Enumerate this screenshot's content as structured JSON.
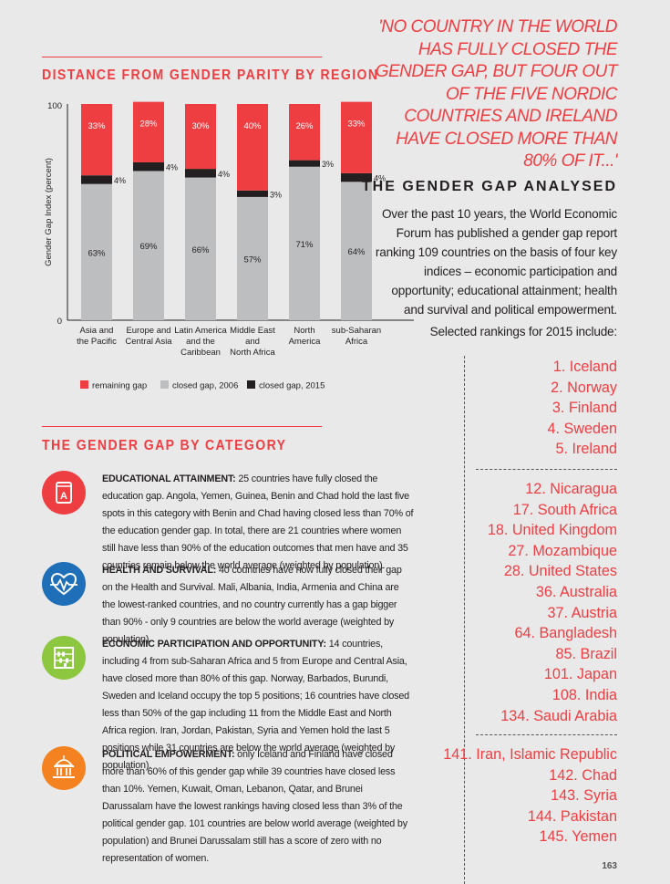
{
  "quote": "'NO COUNTRY IN THE WORLD HAS FULLY CLOSED THE GENDER GAP, BUT FOUR OUT OF THE FIVE NORDIC COUNTRIES AND IRELAND HAVE CLOSED MORE THAN 80% OF IT...'",
  "chart_heading": "DISTANCE FROM GENDER PARITY BY REGION",
  "category_heading": "THE GENDER GAP BY CATEGORY",
  "analysed": {
    "heading": "THE GENDER GAP ANALYSED",
    "body": "Over the past 10 years, the World Economic Forum has published a gender gap report ranking 109 countries on the basis of four key indices – economic participation and opportunity; educational attainment; health and survival and political empowerment.",
    "rank_intro": "Selected rankings for 2015 include:"
  },
  "rankings": {
    "top": [
      "1. Iceland",
      "2. Norway",
      "3. Finland",
      "4. Sweden",
      "5. Ireland"
    ],
    "middle": [
      "12. Nicaragua",
      "17. South Africa",
      "18. United Kingdom",
      "27. Mozambique",
      "28. United States",
      "36. Australia",
      "37. Austria",
      "64. Bangladesh",
      "85. Brazil",
      "101. Japan",
      "108. India",
      "134. Saudi Arabia"
    ],
    "bottom": [
      "141. Iran, Islamic Republic",
      "142. Chad",
      "143. Syria",
      "144. Pakistan",
      "145. Yemen"
    ]
  },
  "page_number": "163",
  "colors": {
    "red": "#ef3e42",
    "grey": "#bcbec0",
    "black": "#231f20",
    "blue": "#1e6fb7",
    "green": "#8dc63f",
    "orange": "#f58220"
  },
  "categories": [
    {
      "icon": "book-icon",
      "color": "#ef3e42",
      "title": "EDUCATIONAL ATTAINMENT:",
      "text": " 25 countries have fully closed the education gap. Angola, Yemen, Guinea, Benin and Chad hold the last five spots in this category with Benin and Chad having closed less than 70% of the education gender gap. In total, there are 21 countries where women still have less than 90% of the education outcomes that men have and 35 countries remain below the world average (weighted by population)."
    },
    {
      "icon": "heart-pulse-icon",
      "color": "#1e6fb7",
      "title": "HEALTH AND SURVIVAL:",
      "text": " 40 countries have now fully closed their gap on the Health and Survival. Mali, Albania, India, Armenia and China are the lowest-ranked countries, and no country currently has a gap bigger than 90% - only 9 countries are below the world average (weighted by population)."
    },
    {
      "icon": "abacus-icon",
      "color": "#8dc63f",
      "title": "ECONOMIC PARTICIPATION AND OPPORTUNITY:",
      "text": " 14 countries, including 4 from sub-Saharan Africa and 5 from Europe and Central Asia, have closed more than 80% of this gap. Norway, Barbados, Burundi, Sweden and Iceland occupy the top 5 positions; 16 countries have closed less than 50% of the gap including 11 from the Middle East and North Africa region. Iran, Jordan, Pakistan, Syria and Yemen hold the last 5 positions while 31 countries are below the world average (weighted by population)."
    },
    {
      "icon": "government-building-icon",
      "color": "#f58220",
      "title": "POLITICAL EMPOWERMENT:",
      "text": " only Iceland and Finland have closed more than 60% of this gender gap while 39 countries have closed less than 10%. Yemen, Kuwait, Oman, Lebanon, Qatar, and Brunei Darussalam have the lowest rankings having closed less than 3% of the political gender gap. 101 countries are below world average (weighted by population) and Brunei Darussalam still has a score of zero with no representation of women."
    }
  ],
  "chart_data": {
    "type": "bar",
    "stacked": true,
    "title": "DISTANCE FROM GENDER PARITY BY REGION",
    "ylabel": "Gender Gap Index (percent)",
    "ylim": [
      0,
      100
    ],
    "yticks": [
      "0",
      "100"
    ],
    "categories": [
      [
        "Asia and",
        "the Pacific"
      ],
      [
        "Europe and",
        "Central Asia"
      ],
      [
        "Latin America",
        "and the",
        "Caribbean"
      ],
      [
        "Middle East",
        "and",
        "North Africa"
      ],
      [
        "North",
        "America"
      ],
      [
        "sub-Saharan",
        "Africa"
      ]
    ],
    "series": [
      {
        "name": "closed gap, 2006",
        "color": "#bcbec0",
        "values": [
          63,
          69,
          66,
          57,
          71,
          64
        ],
        "labels": [
          "63%",
          "69%",
          "66%",
          "57%",
          "71%",
          "64%"
        ]
      },
      {
        "name": "closed gap, 2015",
        "color": "#231f20",
        "values": [
          4,
          4,
          4,
          3,
          3,
          4
        ],
        "labels": [
          "4%",
          "4%",
          "4%",
          "3%",
          "3%",
          "4%"
        ]
      },
      {
        "name": "remaining gap",
        "color": "#ef3e42",
        "values": [
          33,
          28,
          30,
          40,
          26,
          33
        ],
        "labels": [
          "33%",
          "28%",
          "30%",
          "40%",
          "26%",
          "33%"
        ]
      }
    ],
    "legend": [
      {
        "name": "remaining gap",
        "color": "#ef3e42"
      },
      {
        "name": "closed gap, 2006",
        "color": "#bcbec0"
      },
      {
        "name": "closed gap, 2015",
        "color": "#231f20"
      }
    ],
    "legend_position": "bottom",
    "grid": false
  }
}
